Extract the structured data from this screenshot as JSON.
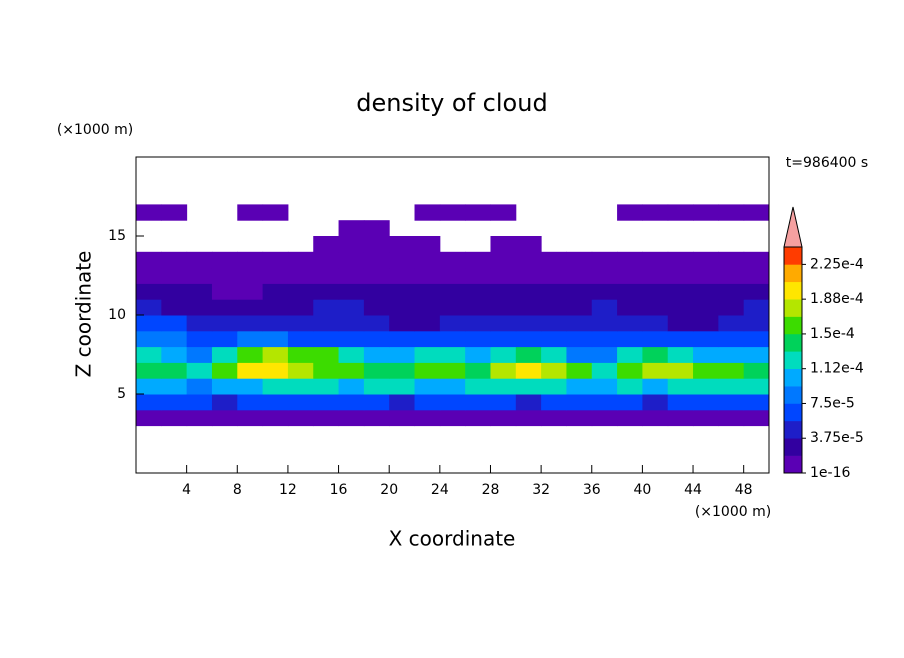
{
  "chart_data": {
    "type": "contour",
    "title": "density of cloud",
    "xlabel": "X coordinate",
    "ylabel": "Z coordinate",
    "xlabel_unit": "(×1000 m)",
    "ylabel_unit": "(×1000 m)",
    "annotation": "t=986400 s",
    "xlim": [
      0,
      50
    ],
    "ylim": [
      0,
      20
    ],
    "xticks": [
      4,
      8,
      12,
      16,
      20,
      24,
      28,
      32,
      36,
      40,
      44,
      48
    ],
    "yticks": [
      5,
      10,
      15
    ],
    "x": [
      1,
      3,
      5,
      7,
      9,
      11,
      13,
      15,
      17,
      19,
      21,
      23,
      25,
      27,
      29,
      31,
      33,
      35,
      37,
      39,
      41,
      43,
      45,
      47,
      49
    ],
    "y": [
      3.5,
      4.5,
      5.5,
      6.5,
      7.5,
      8.5,
      9.5,
      10.5,
      11.5,
      12.5,
      13.5,
      14.5,
      15.5,
      16.5
    ],
    "values": [
      [
        9e-06,
        9e-06,
        9e-06,
        9e-06,
        9e-06,
        9e-06,
        9e-06,
        9e-06,
        9e-06,
        9e-06,
        9e-06,
        9e-06,
        9e-06,
        9e-06,
        9e-06,
        9e-06,
        9e-06,
        9e-06,
        9e-06,
        9e-06,
        9e-06,
        9e-06,
        9e-06,
        9e-06,
        9e-06
      ],
      [
        6.6e-05,
        6.6e-05,
        6.6e-05,
        4.7e-05,
        6.6e-05,
        6.6e-05,
        6.6e-05,
        6.6e-05,
        6.6e-05,
        6.6e-05,
        4.7e-05,
        6.6e-05,
        6.6e-05,
        6.6e-05,
        6.6e-05,
        4.7e-05,
        6.6e-05,
        6.6e-05,
        6.6e-05,
        6.6e-05,
        4.7e-05,
        6.6e-05,
        6.6e-05,
        6.6e-05,
        6.6e-05
      ],
      [
        0.000103,
        0.000103,
        8.4e-05,
        0.000103,
        0.000103,
        0.000122,
        0.000122,
        0.000122,
        0.000103,
        0.000122,
        0.000122,
        0.000103,
        0.000103,
        0.000122,
        0.000122,
        0.000122,
        0.000122,
        0.000103,
        0.000103,
        0.000122,
        0.000103,
        0.000122,
        0.000122,
        0.000122,
        0.000122
      ],
      [
        0.000141,
        0.000141,
        0.000122,
        0.000159,
        0.000197,
        0.000197,
        0.000178,
        0.000159,
        0.000159,
        0.000141,
        0.000141,
        0.000159,
        0.000159,
        0.000141,
        0.000178,
        0.000197,
        0.000178,
        0.000159,
        0.000122,
        0.000159,
        0.000178,
        0.000178,
        0.000159,
        0.000159,
        0.000141
      ],
      [
        0.000122,
        0.000103,
        8.4e-05,
        0.000122,
        0.000159,
        0.000178,
        0.000159,
        0.000159,
        0.000122,
        0.000103,
        0.000103,
        0.000122,
        0.000122,
        0.000103,
        0.000122,
        0.000141,
        0.000122,
        8.4e-05,
        8.4e-05,
        0.000122,
        0.000141,
        0.000122,
        0.000103,
        0.000103,
        0.000103
      ],
      [
        8.4e-05,
        8.4e-05,
        6.6e-05,
        6.6e-05,
        8.4e-05,
        8.4e-05,
        6.6e-05,
        6.6e-05,
        6.6e-05,
        6.6e-05,
        6.6e-05,
        6.6e-05,
        6.6e-05,
        6.6e-05,
        6.6e-05,
        6.6e-05,
        6.6e-05,
        6.6e-05,
        6.6e-05,
        6.6e-05,
        6.6e-05,
        6.6e-05,
        6.6e-05,
        6.6e-05,
        6.6e-05
      ],
      [
        6.6e-05,
        6.6e-05,
        4.7e-05,
        4.7e-05,
        4.7e-05,
        4.7e-05,
        4.7e-05,
        4.7e-05,
        4.7e-05,
        4.7e-05,
        2.8e-05,
        2.8e-05,
        4.7e-05,
        4.7e-05,
        4.7e-05,
        4.7e-05,
        4.7e-05,
        4.7e-05,
        4.7e-05,
        4.7e-05,
        4.7e-05,
        2.8e-05,
        2.8e-05,
        4.7e-05,
        4.7e-05
      ],
      [
        4.7e-05,
        2.8e-05,
        2.8e-05,
        2.8e-05,
        2.8e-05,
        2.8e-05,
        2.8e-05,
        4.7e-05,
        4.7e-05,
        2.8e-05,
        2.8e-05,
        2.8e-05,
        2.8e-05,
        2.8e-05,
        2.8e-05,
        2.8e-05,
        2.8e-05,
        2.8e-05,
        4.7e-05,
        2.8e-05,
        2.8e-05,
        2.8e-05,
        2.8e-05,
        2.8e-05,
        4.7e-05
      ],
      [
        2.8e-05,
        2.8e-05,
        2.8e-05,
        9e-06,
        9e-06,
        2.8e-05,
        2.8e-05,
        2.8e-05,
        2.8e-05,
        2.8e-05,
        2.8e-05,
        2.8e-05,
        2.8e-05,
        2.8e-05,
        2.8e-05,
        2.8e-05,
        2.8e-05,
        2.8e-05,
        2.8e-05,
        2.8e-05,
        2.8e-05,
        2.8e-05,
        2.8e-05,
        2.8e-05,
        2.8e-05
      ],
      [
        9e-06,
        9e-06,
        9e-06,
        9e-06,
        9e-06,
        9e-06,
        9e-06,
        9e-06,
        9e-06,
        9e-06,
        9e-06,
        9e-06,
        9e-06,
        9e-06,
        9e-06,
        9e-06,
        9e-06,
        9e-06,
        9e-06,
        9e-06,
        9e-06,
        9e-06,
        9e-06,
        9e-06,
        9e-06
      ],
      [
        9e-06,
        9e-06,
        9e-06,
        9e-06,
        9e-06,
        9e-06,
        9e-06,
        9e-06,
        9e-06,
        9e-06,
        9e-06,
        9e-06,
        9e-06,
        9e-06,
        9e-06,
        9e-06,
        9e-06,
        9e-06,
        9e-06,
        9e-06,
        9e-06,
        9e-06,
        9e-06,
        9e-06,
        9e-06
      ],
      [
        null,
        null,
        null,
        null,
        null,
        null,
        null,
        9e-06,
        9e-06,
        9e-06,
        9e-06,
        9e-06,
        null,
        null,
        9e-06,
        9e-06,
        null,
        null,
        null,
        null,
        null,
        null,
        null,
        null,
        null
      ],
      [
        null,
        null,
        null,
        null,
        null,
        null,
        null,
        null,
        9e-06,
        9e-06,
        null,
        null,
        null,
        null,
        null,
        null,
        null,
        null,
        null,
        null,
        null,
        null,
        null,
        null,
        null
      ],
      [
        9e-06,
        9e-06,
        null,
        null,
        9e-06,
        9e-06,
        null,
        null,
        null,
        null,
        null,
        9e-06,
        9e-06,
        9e-06,
        9e-06,
        null,
        null,
        null,
        null,
        9e-06,
        9e-06,
        9e-06,
        9e-06,
        9e-06,
        9e-06
      ]
    ],
    "clim": [
      1e-16,
      0.00024375
    ],
    "colorbar_ticks": [
      1e-16,
      {
        "value": 3.75e-05,
        "label": "3.75e-5"
      },
      {
        "value": 7.5e-05,
        "label": "7.5e-5"
      },
      {
        "value": 0.0001125,
        "label": "1.12e-4"
      },
      {
        "value": 0.00015,
        "label": "1.5e-4"
      },
      {
        "value": 0.0001875,
        "label": "1.88e-4"
      },
      {
        "value": 0.000225,
        "label": "2.25e-4"
      }
    ],
    "colors": [
      "#5a00b4",
      "#3200a0",
      "#1e1ec8",
      "#0046ff",
      "#0078ff",
      "#00aaff",
      "#00dcbe",
      "#00d25a",
      "#3cdc00",
      "#b4e600",
      "#ffe600",
      "#ffaa00",
      "#ff3c00"
    ],
    "extend_color": "#f5a0a0"
  }
}
